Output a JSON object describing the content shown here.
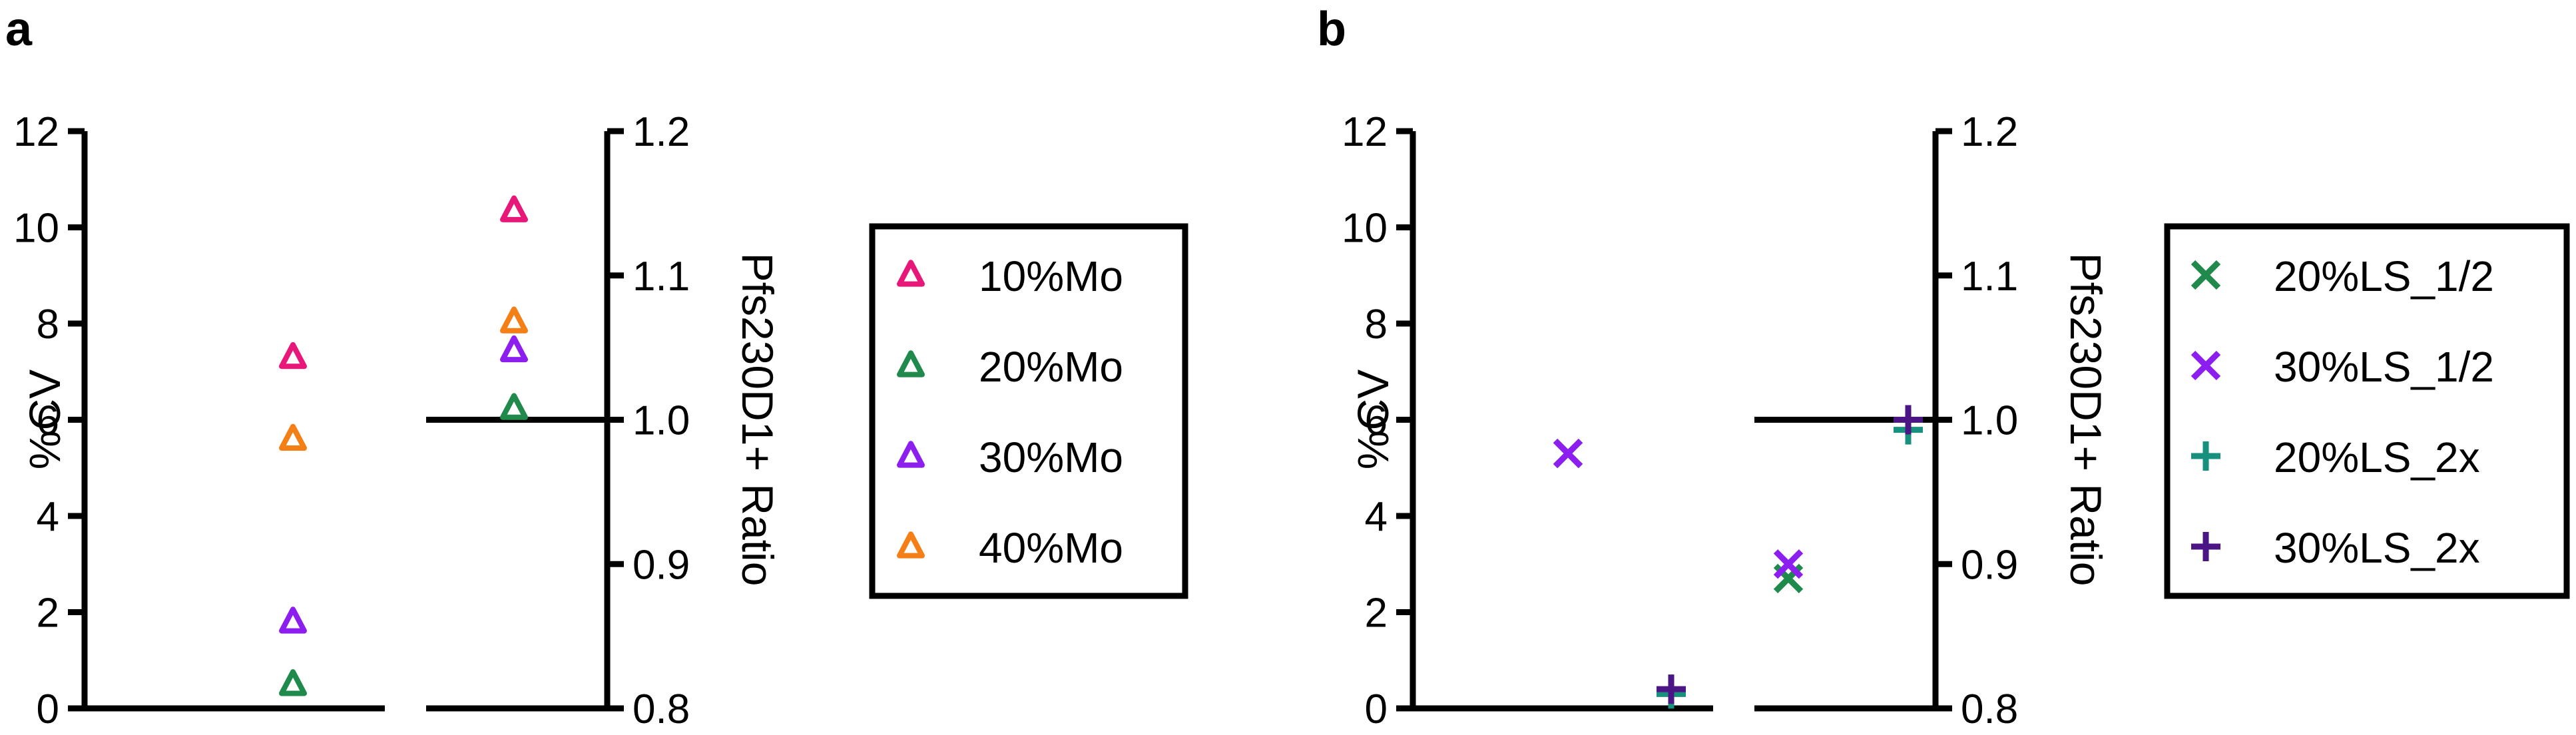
{
  "chart_data": [
    {
      "panel": "a",
      "type": "scatter",
      "left_axis": {
        "label": "%CV",
        "ylim": [
          0,
          12
        ],
        "ticks": [
          "0",
          "2",
          "4",
          "6",
          "8",
          "10",
          "12"
        ]
      },
      "right_axis": {
        "label": "Pfs230D1+ Ratio",
        "ylim": [
          0.8,
          1.2
        ],
        "ticks": [
          "0.8",
          "0.9",
          "1.0",
          "1.1",
          "1.2"
        ]
      },
      "reference_line": 1.0,
      "series": [
        {
          "name": "10%Mo",
          "marker": "triangle",
          "color": "#E8177A",
          "cv": 7.3,
          "ratio": 1.145
        },
        {
          "name": "20%Mo",
          "marker": "triangle",
          "color": "#1F8A4C",
          "cv": 0.5,
          "ratio": 1.008
        },
        {
          "name": "30%Mo",
          "marker": "triangle",
          "color": "#8C1EF0",
          "cv": 1.8,
          "ratio": 1.048
        },
        {
          "name": "40%Mo",
          "marker": "triangle",
          "color": "#F57F17",
          "cv": 5.6,
          "ratio": 1.068
        }
      ]
    },
    {
      "panel": "b",
      "type": "scatter",
      "left_axis": {
        "label": "%CV",
        "ylim": [
          0,
          12
        ],
        "ticks": [
          "0",
          "2",
          "4",
          "6",
          "8",
          "10",
          "12"
        ]
      },
      "right_axis": {
        "label": "Pfs230D1+ Ratio",
        "ylim": [
          0.8,
          1.2
        ],
        "ticks": [
          "0.8",
          "0.9",
          "1.0",
          "1.1",
          "1.2"
        ]
      },
      "reference_line": 1.0,
      "series": [
        {
          "name": "20%LS_1/2",
          "marker": "x",
          "color": "#1F8A4C",
          "cv": 5.3,
          "ratio": 0.89
        },
        {
          "name": "30%LS_1/2",
          "marker": "x",
          "color": "#8C1EF0",
          "cv": 5.3,
          "ratio": 0.9
        },
        {
          "name": "20%LS_2x",
          "marker": "plus",
          "color": "#17907E",
          "cv": 0.3,
          "ratio": 0.993
        },
        {
          "name": "30%LS_2x",
          "marker": "plus",
          "color": "#4B1585",
          "cv": 0.4,
          "ratio": 1.0
        }
      ]
    }
  ]
}
